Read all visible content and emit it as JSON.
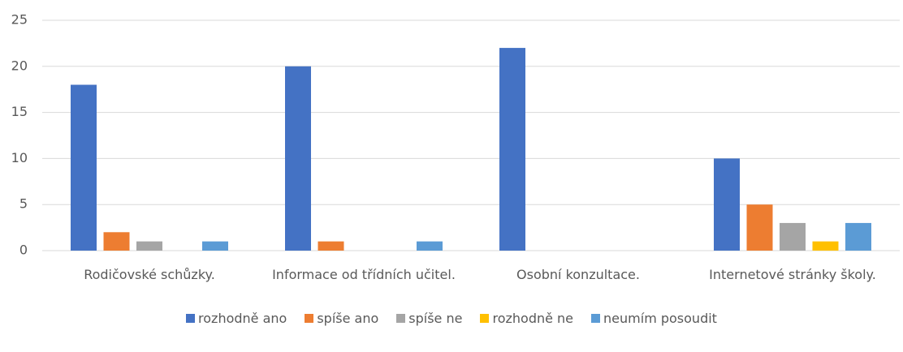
{
  "chart_data": {
    "type": "bar",
    "categories": [
      "Rodičovské schůzky.",
      "Informace od třídních učitel.",
      "Osobní konzultace.",
      "Internetové stránky školy."
    ],
    "series": [
      {
        "name": "rozhodně ano",
        "color": "#4472c4",
        "values": [
          18,
          20,
          22,
          10
        ]
      },
      {
        "name": "spíše ano",
        "color": "#ed7d31",
        "values": [
          2,
          1,
          0,
          5
        ]
      },
      {
        "name": "spíše ne",
        "color": "#a5a5a5",
        "values": [
          1,
          0,
          0,
          3
        ]
      },
      {
        "name": "rozhodně ne",
        "color": "#ffc000",
        "values": [
          0,
          0,
          0,
          1
        ]
      },
      {
        "name": "neumím posoudit",
        "color": "#5b9bd5",
        "values": [
          1,
          1,
          0,
          3
        ]
      }
    ],
    "ylim": [
      0,
      25
    ],
    "yticks": [
      0,
      5,
      10,
      15,
      20,
      25
    ],
    "grid": true,
    "legend": "bottom"
  }
}
